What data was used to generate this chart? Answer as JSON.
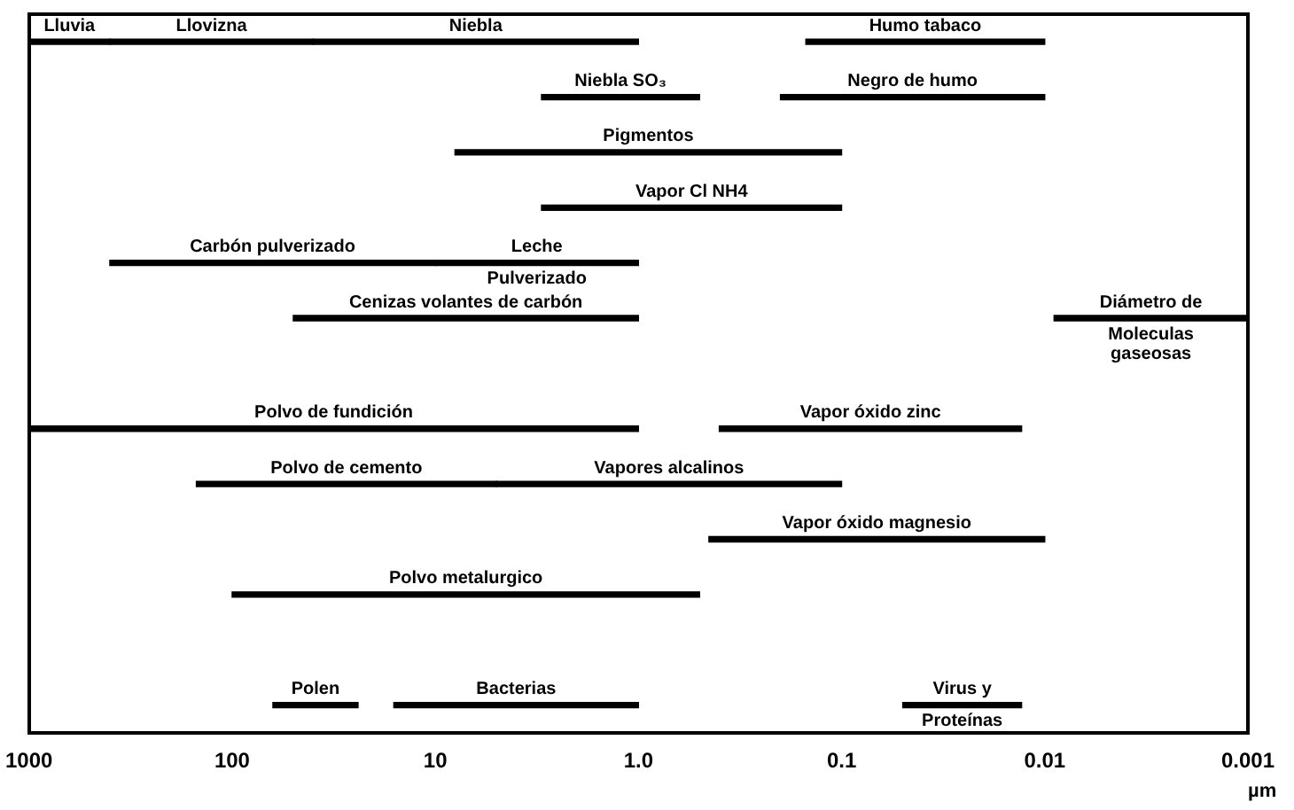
{
  "chart_data": {
    "type": "bar",
    "orientation": "horizontal",
    "xlabel": "µm",
    "log": "x",
    "xlim": [
      1000,
      0.001
    ],
    "xticks": [
      1000,
      100,
      10,
      {
        "value": 1,
        "label": "1.0"
      },
      0.1,
      0.01,
      0.001
    ],
    "tick_labels": "x",
    "grid": false,
    "categories": [
      null,
      null,
      null,
      null,
      null,
      null,
      null,
      null,
      null,
      null,
      null,
      null,
      null
    ],
    "series": [
      {
        "name": "Lluvia",
        "color": "#000000",
        "base": [
          400,
          null,
          null,
          null,
          null,
          null,
          null,
          null,
          null,
          null,
          null,
          null,
          null
        ],
        "values": [
          600,
          null,
          null,
          null,
          null,
          null,
          null,
          null,
          null,
          null,
          null,
          null,
          null
        ]
      },
      {
        "name": "Llovizna",
        "color": "#000000",
        "base": [
          40,
          null,
          null,
          null,
          null,
          null,
          null,
          null,
          null,
          null,
          null,
          null,
          null
        ],
        "values": [
          360,
          null,
          null,
          null,
          null,
          null,
          null,
          null,
          null,
          null,
          null,
          null,
          null
        ]
      },
      {
        "name": "Niebla",
        "color": "#000000",
        "base": [
          1,
          null,
          null,
          null,
          null,
          null,
          null,
          null,
          null,
          null,
          null,
          null,
          null
        ],
        "values": [
          39,
          null,
          null,
          null,
          null,
          null,
          null,
          null,
          null,
          null,
          null,
          null,
          null
        ]
      },
      {
        "name": "Humo tabaco",
        "color": "#000000",
        "base": [
          0.01,
          null,
          null,
          null,
          null,
          null,
          null,
          null,
          null,
          null,
          null,
          null,
          null
        ],
        "values": [
          0.14,
          null,
          null,
          null,
          null,
          null,
          null,
          null,
          null,
          null,
          null,
          null,
          null
        ]
      },
      {
        "name": "Niebla SO₃",
        "color": "#000000",
        "base": [
          null,
          0.5,
          null,
          null,
          null,
          null,
          null,
          null,
          null,
          null,
          null,
          null,
          null
        ],
        "values": [
          null,
          2.5,
          null,
          null,
          null,
          null,
          null,
          null,
          null,
          null,
          null,
          null,
          null
        ]
      },
      {
        "name": "Negro de humo",
        "color": "#000000",
        "base": [
          null,
          0.01,
          null,
          null,
          null,
          null,
          null,
          null,
          null,
          null,
          null,
          null,
          null
        ],
        "values": [
          null,
          0.19,
          null,
          null,
          null,
          null,
          null,
          null,
          null,
          null,
          null,
          null,
          null
        ]
      },
      {
        "name": "Pigmentos",
        "color": "#000000",
        "base": [
          null,
          null,
          0.1,
          null,
          null,
          null,
          null,
          null,
          null,
          null,
          null,
          null,
          null
        ],
        "values": [
          null,
          null,
          7.9,
          null,
          null,
          null,
          null,
          null,
          null,
          null,
          null,
          null,
          null
        ]
      },
      {
        "name": "Vapor Cl NH4",
        "color": "#000000",
        "base": [
          null,
          null,
          null,
          0.1,
          null,
          null,
          null,
          null,
          null,
          null,
          null,
          null,
          null
        ],
        "values": [
          null,
          null,
          null,
          2.9,
          null,
          null,
          null,
          null,
          null,
          null,
          null,
          null,
          null
        ]
      },
      {
        "name": "Carbón pulverizado",
        "color": "#000000",
        "base": [
          null,
          null,
          null,
          null,
          10,
          null,
          null,
          null,
          null,
          null,
          null,
          null,
          null
        ],
        "values": [
          null,
          null,
          null,
          null,
          390,
          null,
          null,
          null,
          null,
          null,
          null,
          null,
          null
        ]
      },
      {
        "name": "Leche\nPulverizado",
        "color": "#000000",
        "base": [
          null,
          null,
          null,
          null,
          1,
          null,
          null,
          null,
          null,
          null,
          null,
          null,
          null
        ],
        "values": [
          null,
          null,
          null,
          null,
          9,
          null,
          null,
          null,
          null,
          null,
          null,
          null,
          null
        ]
      },
      {
        "name": "Cenizas volantes de carbón",
        "color": "#000000",
        "base": [
          null,
          null,
          null,
          null,
          null,
          1,
          null,
          null,
          null,
          null,
          null,
          null,
          null
        ],
        "values": [
          null,
          null,
          null,
          null,
          null,
          49,
          null,
          null,
          null,
          null,
          null,
          null,
          null
        ]
      },
      {
        "name": "Diámetro de\nMoleculas\ngaseosas",
        "color": "#000000",
        "base": [
          null,
          null,
          null,
          null,
          null,
          0.001,
          null,
          null,
          null,
          null,
          null,
          null,
          null
        ],
        "values": [
          null,
          null,
          null,
          null,
          null,
          0.008,
          null,
          null,
          null,
          null,
          null,
          null,
          null
        ]
      },
      {
        "name": "Polvo de fundición",
        "color": "#000000",
        "base": [
          null,
          null,
          null,
          null,
          null,
          null,
          null,
          1,
          null,
          null,
          null,
          null,
          null
        ],
        "values": [
          null,
          null,
          null,
          null,
          null,
          null,
          null,
          999,
          null,
          null,
          null,
          null,
          null
        ]
      },
      {
        "name": "Vapor óxido zinc",
        "color": "#000000",
        "base": [
          null,
          null,
          null,
          null,
          null,
          null,
          null,
          0.013,
          null,
          null,
          null,
          null,
          null
        ],
        "values": [
          null,
          null,
          null,
          null,
          null,
          null,
          null,
          0.387,
          null,
          null,
          null,
          null,
          null
        ]
      },
      {
        "name": "Polvo de cemento",
        "color": "#000000",
        "base": [
          null,
          null,
          null,
          null,
          null,
          null,
          null,
          null,
          5,
          null,
          null,
          null,
          null
        ],
        "values": [
          null,
          null,
          null,
          null,
          null,
          null,
          null,
          null,
          145,
          null,
          null,
          null,
          null
        ]
      },
      {
        "name": "Vapores alcalinos",
        "color": "#000000",
        "base": [
          null,
          null,
          null,
          null,
          null,
          null,
          null,
          null,
          0.1,
          null,
          null,
          null,
          null
        ],
        "values": [
          null,
          null,
          null,
          null,
          null,
          null,
          null,
          null,
          4.9,
          null,
          null,
          null,
          null
        ]
      },
      {
        "name": "Vapor óxido magnesio",
        "color": "#000000",
        "base": [
          null,
          null,
          null,
          null,
          null,
          null,
          null,
          null,
          null,
          0.01,
          null,
          null,
          null
        ],
        "values": [
          null,
          null,
          null,
          null,
          null,
          null,
          null,
          null,
          null,
          0.44,
          null,
          null,
          null
        ]
      },
      {
        "name": "Polvo metalurgico",
        "color": "#000000",
        "base": [
          null,
          null,
          null,
          null,
          null,
          null,
          null,
          null,
          null,
          null,
          0.5,
          null,
          null
        ],
        "values": [
          null,
          null,
          null,
          null,
          null,
          null,
          null,
          null,
          null,
          null,
          99.5,
          null,
          null
        ]
      },
      {
        "name": "Polen",
        "color": "#000000",
        "base": [
          null,
          null,
          null,
          null,
          null,
          null,
          null,
          null,
          null,
          null,
          null,
          null,
          24
        ],
        "values": [
          null,
          null,
          null,
          null,
          null,
          null,
          null,
          null,
          null,
          null,
          null,
          null,
          39
        ]
      },
      {
        "name": "Bacterias",
        "color": "#000000",
        "base": [
          null,
          null,
          null,
          null,
          null,
          null,
          null,
          null,
          null,
          null,
          null,
          null,
          1
        ],
        "values": [
          null,
          null,
          null,
          null,
          null,
          null,
          null,
          null,
          null,
          null,
          null,
          null,
          15
        ]
      },
      {
        "name": "Virus y\nProteínas",
        "color": "#000000",
        "base": [
          null,
          null,
          null,
          null,
          null,
          null,
          null,
          null,
          null,
          null,
          null,
          null,
          0.013
        ],
        "values": [
          null,
          null,
          null,
          null,
          null,
          null,
          null,
          null,
          null,
          null,
          null,
          null,
          0.037
        ]
      }
    ]
  }
}
